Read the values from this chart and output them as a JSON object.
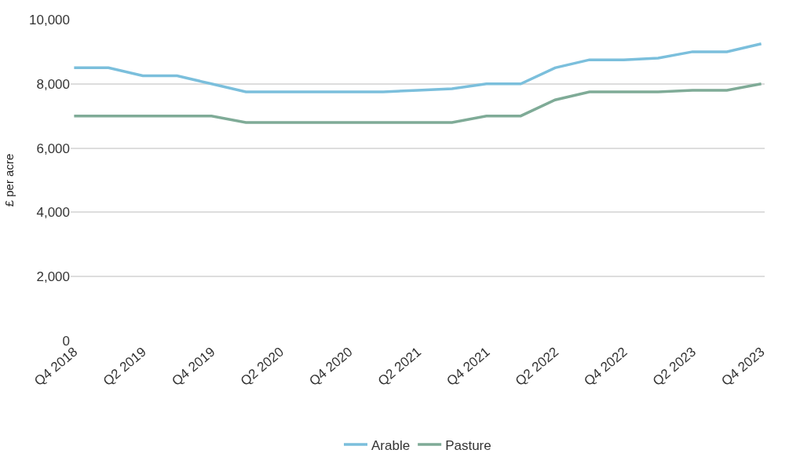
{
  "chart_data": {
    "type": "line",
    "ylabel": "£ per acre",
    "categories": [
      "Q4 2018",
      null,
      "Q2 2019",
      null,
      "Q4 2019",
      null,
      "Q2 2020",
      null,
      "Q4 2020",
      null,
      "Q2 2021",
      null,
      "Q4 2021",
      null,
      "Q2 2022",
      null,
      "Q4 2022",
      null,
      "Q2 2023",
      null,
      "Q4 2023"
    ],
    "series": [
      {
        "name": "Arable",
        "color": "#7bbfdc",
        "values": [
          8500,
          8500,
          8250,
          8250,
          8000,
          7750,
          7750,
          7750,
          7750,
          7750,
          7800,
          7850,
          8000,
          8000,
          8500,
          8750,
          8750,
          8800,
          9000,
          9000,
          9250
        ]
      },
      {
        "name": "Pasture",
        "color": "#7fab97",
        "values": [
          7000,
          7000,
          7000,
          7000,
          7000,
          6800,
          6800,
          6800,
          6800,
          6800,
          6800,
          6800,
          7000,
          7000,
          7500,
          7750,
          7750,
          7750,
          7800,
          7800,
          8000
        ]
      }
    ],
    "ylim": [
      0,
      10000
    ],
    "yticks": [
      {
        "value": 0,
        "label": "0"
      },
      {
        "value": 2000,
        "label": "2,000"
      },
      {
        "value": 4000,
        "label": "4,000"
      },
      {
        "value": 6000,
        "label": "6,000"
      },
      {
        "value": 8000,
        "label": "8,000"
      },
      {
        "value": 10000,
        "label": "10,000"
      }
    ],
    "grid": "y",
    "legend": "bottom",
    "marker": "none",
    "line_style": "solid"
  }
}
